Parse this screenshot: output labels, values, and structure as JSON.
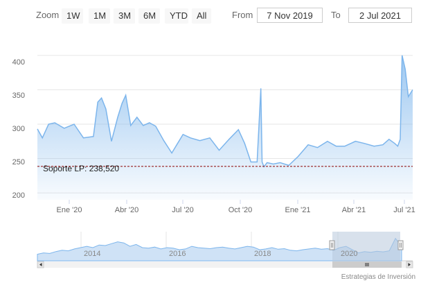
{
  "range_selector": {
    "zoom_label": "Zoom",
    "buttons": [
      "1W",
      "1M",
      "3M",
      "6M",
      "YTD",
      "All"
    ],
    "from_label": "From",
    "from_value": "7 Nov 2019",
    "to_label": "To",
    "to_value": "2 Jul 2021"
  },
  "support_line": {
    "label": "Soporte LP: 238,520",
    "value": 238.52,
    "color": "#8b0000"
  },
  "colors": {
    "series": "#7cb5ec",
    "grid": "#e6e6e6",
    "navigator_mask": "#b8c8dc"
  },
  "navigator": {
    "ticks": [
      "2014",
      "2016",
      "2018",
      "2020"
    ]
  },
  "credits": "Estrategias de Inversión",
  "chart_data": {
    "type": "area",
    "x_ticks": [
      "Ene '20",
      "Abr '20",
      "Jul '20",
      "Oct '20",
      "Ene '21",
      "Abr '21",
      "Jul '21"
    ],
    "y_ticks": [
      "200",
      "250",
      "300",
      "350",
      "400"
    ],
    "ylim": [
      190,
      420
    ],
    "x_range": [
      "2019-11-07",
      "2021-07-02"
    ],
    "grid": true,
    "x": [
      "2019-11-07",
      "2019-11-15",
      "2019-11-25",
      "2019-12-05",
      "2019-12-20",
      "2020-01-05",
      "2020-01-20",
      "2020-02-05",
      "2020-02-12",
      "2020-02-18",
      "2020-02-25",
      "2020-03-05",
      "2020-03-15",
      "2020-03-22",
      "2020-03-28",
      "2020-04-05",
      "2020-04-15",
      "2020-04-25",
      "2020-05-05",
      "2020-05-15",
      "2020-05-28",
      "2020-06-10",
      "2020-06-18",
      "2020-06-28",
      "2020-07-10",
      "2020-07-25",
      "2020-08-10",
      "2020-08-25",
      "2020-09-10",
      "2020-09-25",
      "2020-10-05",
      "2020-10-15",
      "2020-10-25",
      "2020-10-31",
      "2020-11-02",
      "2020-11-05",
      "2020-11-10",
      "2020-11-20",
      "2020-12-01",
      "2020-12-15",
      "2020-12-30",
      "2021-01-15",
      "2021-01-30",
      "2021-02-15",
      "2021-03-01",
      "2021-03-15",
      "2021-04-01",
      "2021-04-15",
      "2021-05-01",
      "2021-05-15",
      "2021-05-25",
      "2021-06-03",
      "2021-06-08",
      "2021-06-12",
      "2021-06-15",
      "2021-06-20",
      "2021-06-25",
      "2021-07-02"
    ],
    "y": [
      293,
      280,
      300,
      302,
      294,
      300,
      280,
      282,
      332,
      338,
      322,
      275,
      310,
      330,
      342,
      298,
      310,
      298,
      302,
      297,
      276,
      258,
      270,
      285,
      280,
      276,
      280,
      262,
      278,
      292,
      272,
      245,
      245,
      352,
      245,
      238,
      244,
      242,
      244,
      240,
      253,
      270,
      266,
      275,
      268,
      268,
      275,
      272,
      268,
      270,
      278,
      272,
      268,
      278,
      400,
      380,
      340,
      350
    ]
  }
}
